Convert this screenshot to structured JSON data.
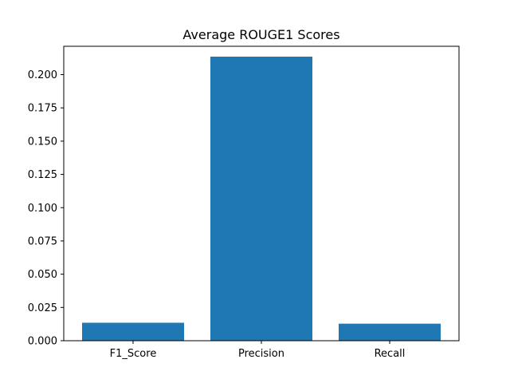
{
  "chart_data": {
    "type": "bar",
    "title": "Average ROUGE1 Scores",
    "xlabel": "",
    "ylabel": "",
    "categories": [
      "F1_Score",
      "Precision",
      "Recall"
    ],
    "values": [
      0.0135,
      0.2135,
      0.0128
    ],
    "ylim": [
      0,
      0.2213
    ],
    "yticks": [
      0.0,
      0.025,
      0.05,
      0.075,
      0.1,
      0.125,
      0.15,
      0.175,
      0.2
    ],
    "ytick_labels": [
      "0.000",
      "0.025",
      "0.050",
      "0.075",
      "0.100",
      "0.125",
      "0.150",
      "0.175",
      "0.200"
    ],
    "bar_color": "#1f77b4",
    "grid": false,
    "legend": "none"
  }
}
